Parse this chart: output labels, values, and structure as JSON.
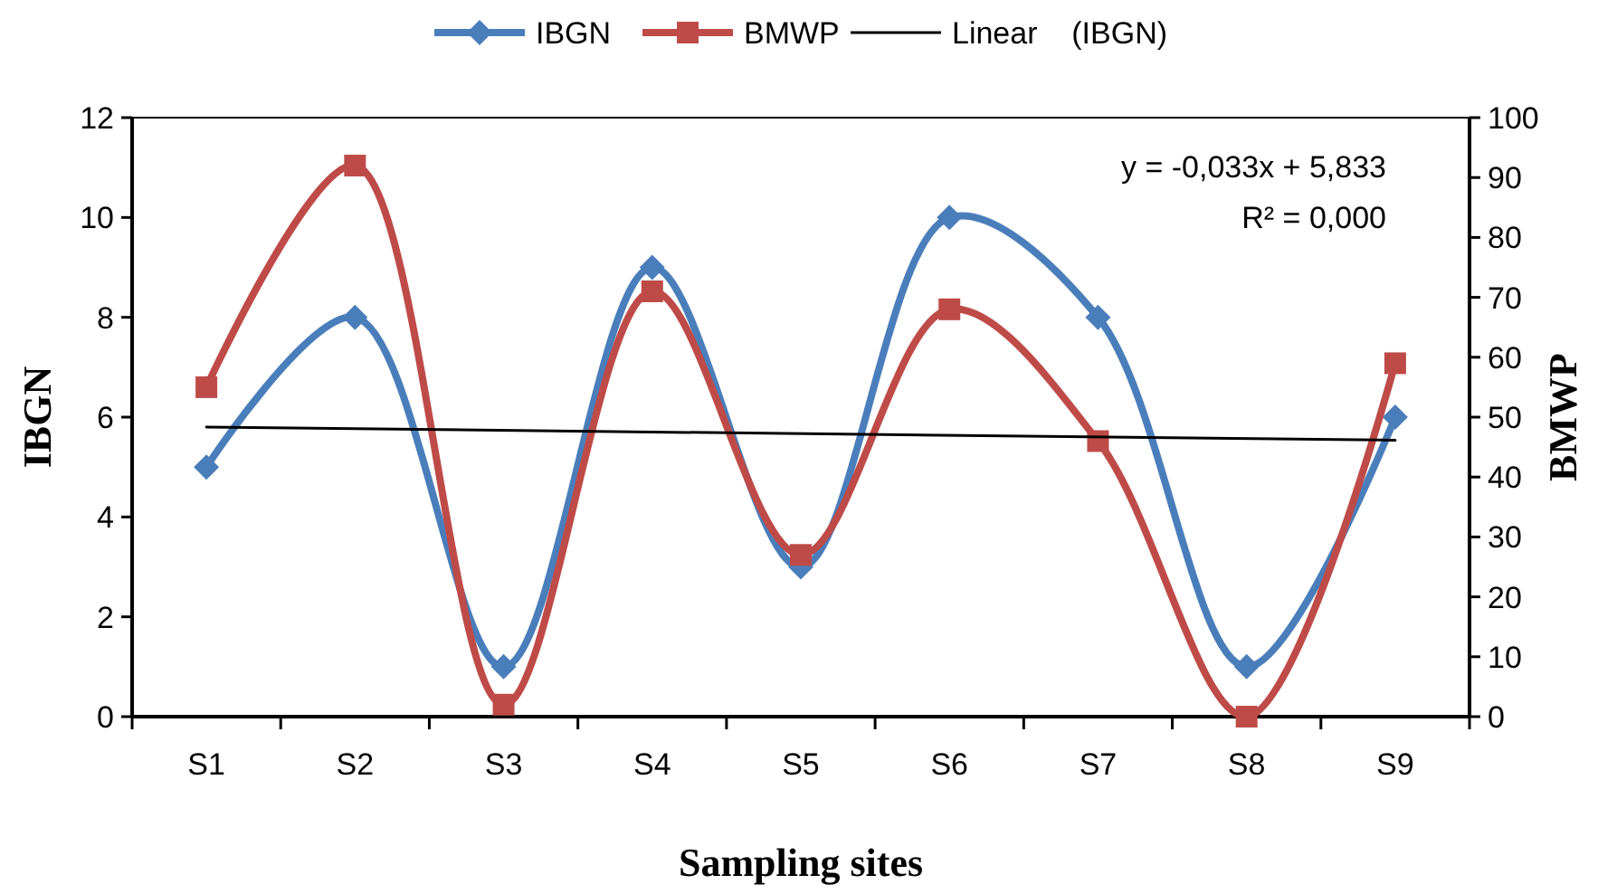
{
  "chart_data": {
    "type": "line",
    "xlabel": "Sampling sites",
    "ylabel": "IBGN",
    "y2label": "BMWP",
    "categories": [
      "S1",
      "S2",
      "S3",
      "S4",
      "S5",
      "S6",
      "S7",
      "S8",
      "S9"
    ],
    "series": [
      {
        "name": "IBGN",
        "color": "#4a7ebb",
        "marker": "diamond",
        "values": [
          5,
          8,
          1,
          9,
          3,
          10,
          8,
          1,
          6
        ]
      },
      {
        "name": "BMWP",
        "color": "#be4b48",
        "marker": "square",
        "axis": "y2",
        "values": [
          55,
          92,
          2,
          71,
          27,
          68,
          46,
          0,
          59
        ]
      },
      {
        "name": "Linear    (IBGN)",
        "type": "line",
        "color": "#000000",
        "marker": "none",
        "x": [
          "S1",
          "S9"
        ],
        "values": [
          5.8,
          5.54
        ]
      }
    ],
    "ylim": [
      0,
      12
    ],
    "yticks": [
      0,
      2,
      4,
      6,
      8,
      10,
      12
    ],
    "y2lim": [
      0,
      100
    ],
    "y2ticks": [
      0,
      10,
      20,
      30,
      40,
      50,
      60,
      70,
      80,
      90,
      100
    ],
    "annotations": [
      "y = -0,033x + 5,833",
      "R² = 0,000"
    ],
    "legend": "top",
    "grid": false
  }
}
